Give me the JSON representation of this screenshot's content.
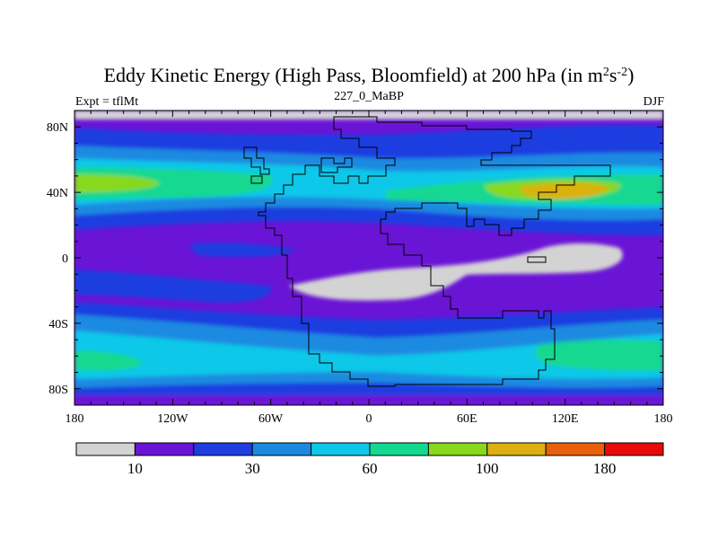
{
  "chart_data": {
    "type": "heatmap",
    "title_main": "Eddy Kinetic Energy (High Pass, Bloomfield) at 200 hPa (in m",
    "title_sup1": "2",
    "title_mid": "s",
    "title_sup2": "-2",
    "title_end": ")",
    "subtitle_left": "Expt = tflMt",
    "subtitle_center": "227_0_MaBP",
    "subtitle_right": "DJF",
    "lon_range": [
      -180,
      180
    ],
    "lat_range": [
      -90,
      90
    ],
    "x_ticks": [
      {
        "value": -180,
        "label": "180"
      },
      {
        "value": -120,
        "label": "120W"
      },
      {
        "value": -60,
        "label": "60W"
      },
      {
        "value": 0,
        "label": "0"
      },
      {
        "value": 60,
        "label": "60E"
      },
      {
        "value": 120,
        "label": "120E"
      },
      {
        "value": 180,
        "label": "180"
      }
    ],
    "y_ticks": [
      {
        "value": 80,
        "label": "80N"
      },
      {
        "value": 40,
        "label": "40N"
      },
      {
        "value": 0,
        "label": "0"
      },
      {
        "value": -40,
        "label": "40S"
      },
      {
        "value": -80,
        "label": "80S"
      }
    ],
    "colorbar": {
      "levels": [
        10,
        20,
        30,
        40,
        60,
        80,
        100,
        140,
        180,
        200
      ],
      "labels": [
        {
          "index": 1,
          "text": "10"
        },
        {
          "index": 3,
          "text": "30"
        },
        {
          "index": 5,
          "text": "60"
        },
        {
          "index": 7,
          "text": "100"
        },
        {
          "index": 9,
          "text": "180"
        }
      ],
      "colors": [
        "#d3d3d3",
        "#6a14d6",
        "#1e3ee0",
        "#1a8ae0",
        "#0ec8e8",
        "#12d890",
        "#88d81c",
        "#dcb010",
        "#e8600c",
        "#e80a0a"
      ]
    }
  }
}
